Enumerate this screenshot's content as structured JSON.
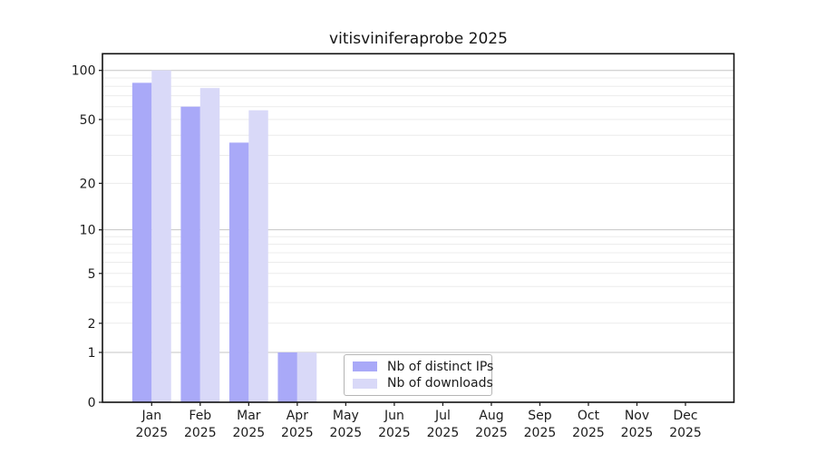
{
  "chart_data": {
    "type": "bar",
    "title": "vitisviniferaprobe 2025",
    "categories": [
      "Jan",
      "Feb",
      "Mar",
      "Apr",
      "May",
      "Jun",
      "Jul",
      "Aug",
      "Sep",
      "Oct",
      "Nov",
      "Dec"
    ],
    "category_year": "2025",
    "series": [
      {
        "name": "Nb of distinct IPs",
        "color": "#a9a9f8",
        "values": [
          84,
          60,
          36,
          1,
          0,
          0,
          0,
          0,
          0,
          0,
          0,
          0
        ]
      },
      {
        "name": "Nb of downloads",
        "color": "#d9d9f8",
        "values": [
          100,
          78,
          57,
          1,
          0,
          0,
          0,
          0,
          0,
          0,
          0,
          0
        ]
      }
    ],
    "xlabel": "",
    "ylabel": "",
    "yscale": "log1p",
    "y_ticks": [
      0,
      1,
      2,
      5,
      10,
      20,
      50,
      100
    ],
    "y_major_gridlines": [
      1,
      10,
      100
    ],
    "y_minor_gridlines": [
      2,
      3,
      4,
      5,
      6,
      7,
      8,
      9,
      20,
      30,
      40,
      50,
      60,
      70,
      80,
      90
    ],
    "ylim": [
      0,
      127
    ],
    "grid": "on",
    "legend_position": "lower center",
    "colors": {
      "spine": "#111111",
      "tick": "#222222",
      "tick_label": "#1c1c1c",
      "major_grid": "#c6c6c6",
      "minor_grid": "#ececec",
      "background": "#ffffff"
    }
  }
}
